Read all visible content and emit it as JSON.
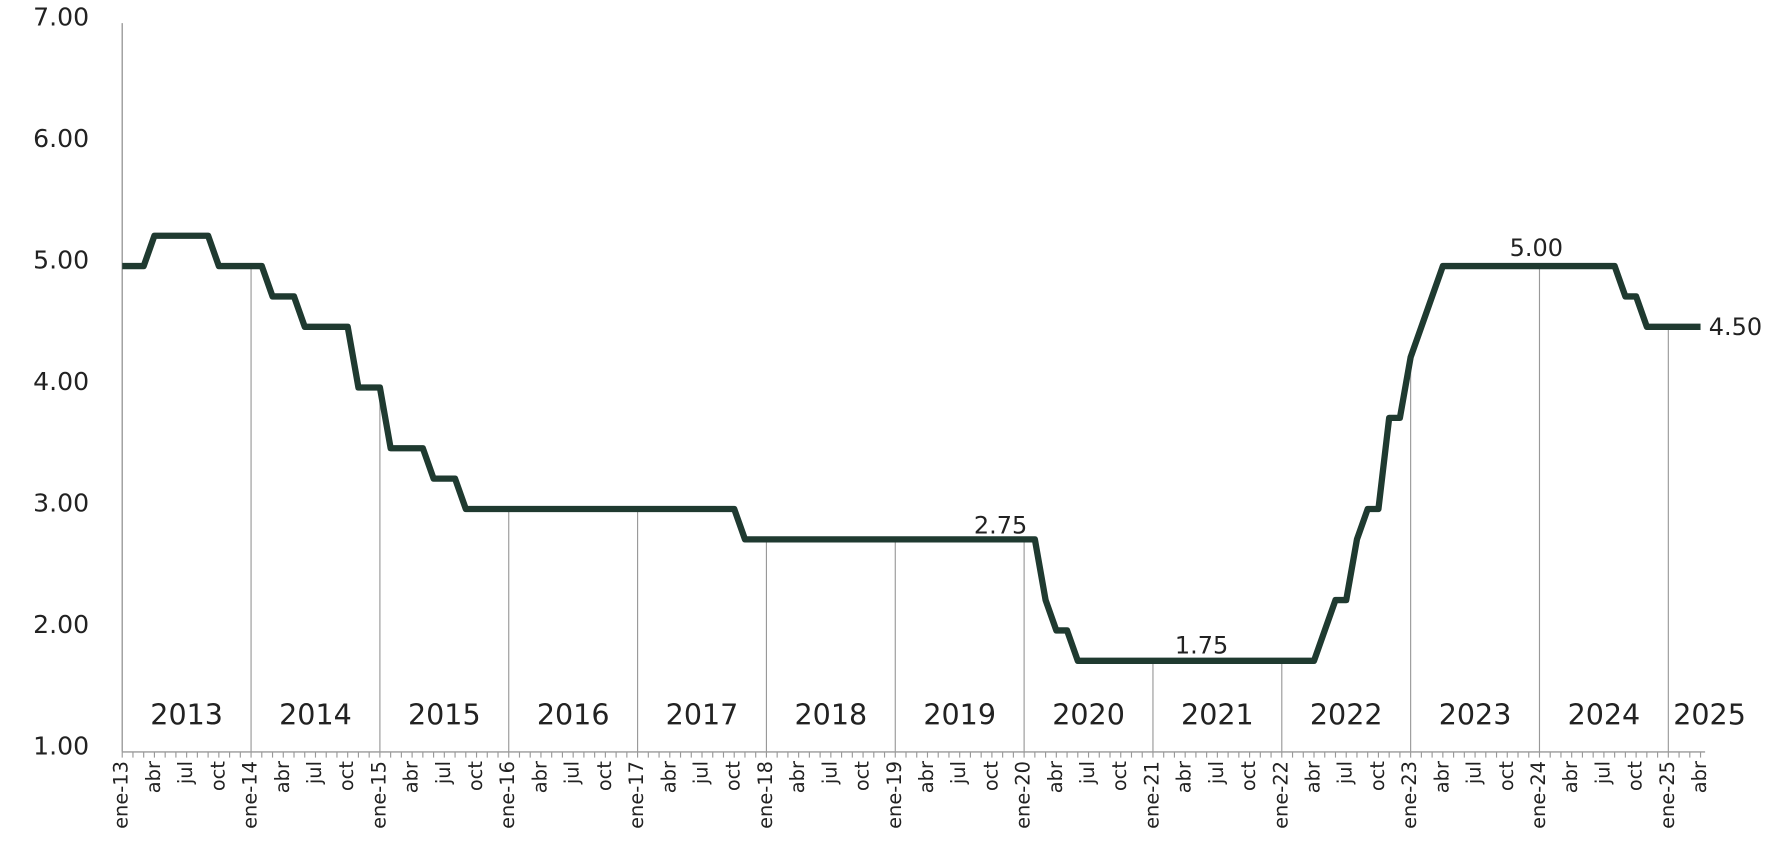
{
  "chart_data": {
    "type": "line",
    "categories": [
      "ene-13",
      null,
      null,
      "abr",
      null,
      null,
      "jul",
      null,
      null,
      "oct",
      null,
      null,
      "ene-14",
      null,
      null,
      "abr",
      null,
      null,
      "jul",
      null,
      null,
      "oct",
      null,
      null,
      "ene-15",
      null,
      null,
      "abr",
      null,
      null,
      "jul",
      null,
      null,
      "oct",
      null,
      null,
      "ene-16",
      null,
      null,
      "abr",
      null,
      null,
      "jul",
      null,
      null,
      "oct",
      null,
      null,
      "ene-17",
      null,
      null,
      "abr",
      null,
      null,
      "jul",
      null,
      null,
      "oct",
      null,
      null,
      "ene-18",
      null,
      null,
      "abr",
      null,
      null,
      "jul",
      null,
      null,
      "oct",
      null,
      null,
      "ene-19",
      null,
      null,
      "abr",
      null,
      null,
      "jul",
      null,
      null,
      "oct",
      null,
      null,
      "ene-20",
      null,
      null,
      "abr",
      null,
      null,
      "jul",
      null,
      null,
      "oct",
      null,
      null,
      "ene-21",
      null,
      null,
      "abr",
      null,
      null,
      "jul",
      null,
      null,
      "oct",
      null,
      null,
      "ene-22",
      null,
      null,
      "abr",
      null,
      null,
      "jul",
      null,
      null,
      "oct",
      null,
      null,
      "ene-23",
      null,
      null,
      "abr",
      null,
      null,
      "jul",
      null,
      null,
      "oct",
      null,
      null,
      "ene-24",
      null,
      null,
      "abr",
      null,
      null,
      "jul",
      null,
      null,
      "oct",
      null,
      null,
      "ene-25",
      null,
      null,
      "abr"
    ],
    "series": [
      {
        "color": "#1f3a30",
        "values": [
          5,
          5,
          5,
          5.25,
          5.25,
          5.25,
          5.25,
          5.25,
          5.25,
          5,
          5,
          5,
          5,
          5,
          4.75,
          4.75,
          4.75,
          4.5,
          4.5,
          4.5,
          4.5,
          4.5,
          4,
          4,
          4,
          3.5,
          3.5,
          3.5,
          3.5,
          3.25,
          3.25,
          3.25,
          3,
          3,
          3,
          3,
          3,
          3,
          3,
          3,
          3,
          3,
          3,
          3,
          3,
          3,
          3,
          3,
          3,
          3,
          3,
          3,
          3,
          3,
          3,
          3,
          3,
          3,
          2.75,
          2.75,
          2.75,
          2.75,
          2.75,
          2.75,
          2.75,
          2.75,
          2.75,
          2.75,
          2.75,
          2.75,
          2.75,
          2.75,
          2.75,
          2.75,
          2.75,
          2.75,
          2.75,
          2.75,
          2.75,
          2.75,
          2.75,
          2.75,
          2.75,
          2.75,
          2.75,
          2.75,
          2.25,
          2,
          2,
          1.75,
          1.75,
          1.75,
          1.75,
          1.75,
          1.75,
          1.75,
          1.75,
          1.75,
          1.75,
          1.75,
          1.75,
          1.75,
          1.75,
          1.75,
          1.75,
          1.75,
          1.75,
          1.75,
          1.75,
          1.75,
          1.75,
          1.75,
          2,
          2.25,
          2.25,
          2.75,
          3,
          3,
          3.75,
          3.75,
          4.25,
          4.5,
          4.75,
          5,
          5,
          5,
          5,
          5,
          5,
          5,
          5,
          5,
          5,
          5,
          5,
          5,
          5,
          5,
          5,
          5,
          4.75,
          4.75,
          4.5,
          4.5,
          4.5,
          4.5,
          4.5,
          4.5
        ]
      }
    ],
    "year_labels": [
      "2013",
      "2014",
      "2015",
      "2016",
      "2017",
      "2018",
      "2019",
      "2020",
      "2021",
      "2022",
      "2023",
      "2024",
      "2025"
    ],
    "annotations": [
      "2.75",
      "1.75",
      "5.00",
      "4.50"
    ],
    "ylim": [
      1,
      7
    ],
    "yticks": [
      {
        "value": 1,
        "label": "1.00"
      },
      {
        "value": 2,
        "label": "2.00"
      },
      {
        "value": 3,
        "label": "3.00"
      },
      {
        "value": 4,
        "label": "4.00"
      },
      {
        "value": 5,
        "label": "5.00"
      },
      {
        "value": 6,
        "label": "6.00"
      },
      {
        "value": 7,
        "label": "7.00"
      }
    ]
  }
}
